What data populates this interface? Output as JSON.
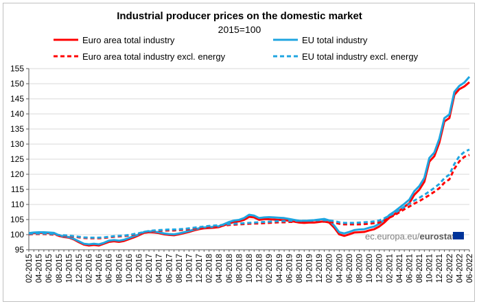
{
  "chart_data": {
    "type": "line",
    "title": "Industrial producer prices on the domestic market",
    "subtitle": "2015=100",
    "xlabel": "",
    "ylabel": "",
    "ylim": [
      95,
      155
    ],
    "yticks": [
      95,
      100,
      105,
      110,
      115,
      120,
      125,
      130,
      135,
      140,
      145,
      150,
      155
    ],
    "grid": true,
    "legend_position": "top",
    "x": [
      "02-2015",
      "03-2015",
      "04-2015",
      "05-2015",
      "06-2015",
      "07-2015",
      "08-2015",
      "09-2015",
      "10-2015",
      "11-2015",
      "12-2015",
      "01-2016",
      "02-2016",
      "03-2016",
      "04-2016",
      "05-2016",
      "06-2016",
      "07-2016",
      "08-2016",
      "09-2016",
      "10-2016",
      "11-2016",
      "12-2016",
      "01-2017",
      "02-2017",
      "03-2017",
      "04-2017",
      "05-2017",
      "06-2017",
      "07-2017",
      "08-2017",
      "09-2017",
      "10-2017",
      "11-2017",
      "12-2017",
      "01-2018",
      "02-2018",
      "03-2018",
      "04-2018",
      "05-2018",
      "06-2018",
      "07-2018",
      "08-2018",
      "09-2018",
      "10-2018",
      "11-2018",
      "12-2018",
      "01-2019",
      "02-2019",
      "03-2019",
      "04-2019",
      "05-2019",
      "06-2019",
      "07-2019",
      "08-2019",
      "09-2019",
      "10-2019",
      "11-2019",
      "12-2019",
      "01-2020",
      "02-2020",
      "03-2020",
      "04-2020",
      "05-2020",
      "06-2020",
      "07-2020",
      "08-2020",
      "09-2020",
      "10-2020",
      "11-2020",
      "12-2020",
      "01-2021",
      "02-2021",
      "03-2021",
      "04-2021",
      "05-2021",
      "06-2021",
      "07-2021",
      "08-2021",
      "09-2021",
      "10-2021",
      "11-2021",
      "12-2021",
      "01-2022",
      "02-2022",
      "03-2022",
      "04-2022",
      "05-2022",
      "06-2022"
    ],
    "x_tick_labels": [
      "02-2015",
      "04-2015",
      "06-2015",
      "08-2015",
      "10-2015",
      "12-2015",
      "02-2016",
      "04-2016",
      "06-2016",
      "08-2016",
      "10-2016",
      "12-2016",
      "02-2017",
      "04-2017",
      "06-2017",
      "08-2017",
      "10-2017",
      "12-2017",
      "02-2018",
      "04-2018",
      "06-2018",
      "08-2018",
      "10-2018",
      "12-2018",
      "02-2019",
      "04-2019",
      "06-2019",
      "08-2019",
      "10-2019",
      "12-2019",
      "02-2020",
      "04-2020",
      "06-2020",
      "08-2020",
      "10-2020",
      "12-2020",
      "02-2021",
      "04-2021",
      "06-2021",
      "08-2021",
      "10-2021",
      "12-2021",
      "02-2022",
      "04-2022",
      "06-2022"
    ],
    "series": [
      {
        "name": "Euro area total industry",
        "color": "#ff0000",
        "dash": "solid",
        "values": [
          100.3,
          100.5,
          100.6,
          100.6,
          100.5,
          100.4,
          99.6,
          99.2,
          99.0,
          98.4,
          97.5,
          96.7,
          96.4,
          96.6,
          96.4,
          97.0,
          97.6,
          97.8,
          97.6,
          97.9,
          98.5,
          99.1,
          99.8,
          100.6,
          100.8,
          100.7,
          100.5,
          100.1,
          99.9,
          99.8,
          100.1,
          100.5,
          100.9,
          101.4,
          101.8,
          102.1,
          102.2,
          102.3,
          102.5,
          103.1,
          103.7,
          104.2,
          104.4,
          104.9,
          105.9,
          105.7,
          104.9,
          105.1,
          105.1,
          105.0,
          104.9,
          104.8,
          104.6,
          104.3,
          104.0,
          103.9,
          104.0,
          104.0,
          104.2,
          104.4,
          104.0,
          102.3,
          100.1,
          99.6,
          100.1,
          100.7,
          100.8,
          100.9,
          101.4,
          101.8,
          102.7,
          104.0,
          105.6,
          106.7,
          107.9,
          109.2,
          110.4,
          113.2,
          114.9,
          117.5,
          124.2,
          126.0,
          130.5,
          137.5,
          138.6,
          146.3,
          148.2,
          149.1,
          150.5
        ]
      },
      {
        "name": "EU total industry",
        "color": "#1fa5e0",
        "dash": "solid",
        "values": [
          100.5,
          100.7,
          100.8,
          100.8,
          100.7,
          100.6,
          99.8,
          99.4,
          99.2,
          98.6,
          97.8,
          97.0,
          96.8,
          97.0,
          96.8,
          97.3,
          98.0,
          98.2,
          98.0,
          98.3,
          98.9,
          99.5,
          100.1,
          100.9,
          101.1,
          101.0,
          100.8,
          100.4,
          100.2,
          100.1,
          100.4,
          100.8,
          101.2,
          101.7,
          102.1,
          102.4,
          102.5,
          102.6,
          102.8,
          103.5,
          104.2,
          104.7,
          104.9,
          105.5,
          106.6,
          106.3,
          105.5,
          105.7,
          105.8,
          105.7,
          105.6,
          105.5,
          105.2,
          104.9,
          104.6,
          104.5,
          104.7,
          104.8,
          105.0,
          105.2,
          104.7,
          103.0,
          100.8,
          100.4,
          100.9,
          101.5,
          101.7,
          101.8,
          102.3,
          102.7,
          103.6,
          104.9,
          106.5,
          107.6,
          108.9,
          110.2,
          111.6,
          114.4,
          116.1,
          118.8,
          125.4,
          127.2,
          131.8,
          138.6,
          139.8,
          147.3,
          149.3,
          150.4,
          152.3
        ]
      },
      {
        "name": "Euro area total industry excl. energy",
        "color": "#ff0000",
        "dash": "dashed",
        "values": [
          100.1,
          100.2,
          100.2,
          100.2,
          100.1,
          100.0,
          99.7,
          99.6,
          99.5,
          99.3,
          99.1,
          98.9,
          98.8,
          98.8,
          98.8,
          98.9,
          99.1,
          99.3,
          99.4,
          99.5,
          99.7,
          100.0,
          100.3,
          100.7,
          101.0,
          101.2,
          101.3,
          101.3,
          101.4,
          101.4,
          101.5,
          101.6,
          101.8,
          102.0,
          102.2,
          102.4,
          102.6,
          102.7,
          102.8,
          103.0,
          103.2,
          103.3,
          103.4,
          103.5,
          103.6,
          103.7,
          103.7,
          103.8,
          103.9,
          104.0,
          104.1,
          104.1,
          104.2,
          104.2,
          104.2,
          104.2,
          104.2,
          104.2,
          104.3,
          104.3,
          104.2,
          104.0,
          103.6,
          103.4,
          103.4,
          103.4,
          103.4,
          103.5,
          103.6,
          103.8,
          104.0,
          104.7,
          105.6,
          106.4,
          107.4,
          108.4,
          109.3,
          110.3,
          111.1,
          112.1,
          113.1,
          114.2,
          115.4,
          117.2,
          118.3,
          121.8,
          124.3,
          125.8,
          126.4
        ]
      },
      {
        "name": "EU total industry excl. energy",
        "color": "#1fa5e0",
        "dash": "dashed",
        "values": [
          100.3,
          100.4,
          100.4,
          100.4,
          100.3,
          100.2,
          99.9,
          99.8,
          99.7,
          99.5,
          99.3,
          99.1,
          99.0,
          99.0,
          99.0,
          99.1,
          99.3,
          99.5,
          99.6,
          99.7,
          99.9,
          100.2,
          100.5,
          100.9,
          101.2,
          101.4,
          101.5,
          101.6,
          101.7,
          101.7,
          101.8,
          101.9,
          102.1,
          102.3,
          102.5,
          102.7,
          102.9,
          103.0,
          103.1,
          103.3,
          103.5,
          103.6,
          103.7,
          103.8,
          103.9,
          104.0,
          104.1,
          104.2,
          104.3,
          104.4,
          104.5,
          104.5,
          104.6,
          104.6,
          104.6,
          104.6,
          104.6,
          104.7,
          104.8,
          104.8,
          104.7,
          104.5,
          104.1,
          103.9,
          103.9,
          103.9,
          104.0,
          104.1,
          104.2,
          104.4,
          104.7,
          105.4,
          106.3,
          107.1,
          108.1,
          109.2,
          110.2,
          111.3,
          112.2,
          113.2,
          114.3,
          115.5,
          116.8,
          118.7,
          119.9,
          123.4,
          126.0,
          127.4,
          128.2
        ]
      }
    ]
  },
  "watermark": {
    "source_text": "ec.europa.eu/",
    "brand_text": "eurostat",
    "flag_color": "#003399"
  }
}
